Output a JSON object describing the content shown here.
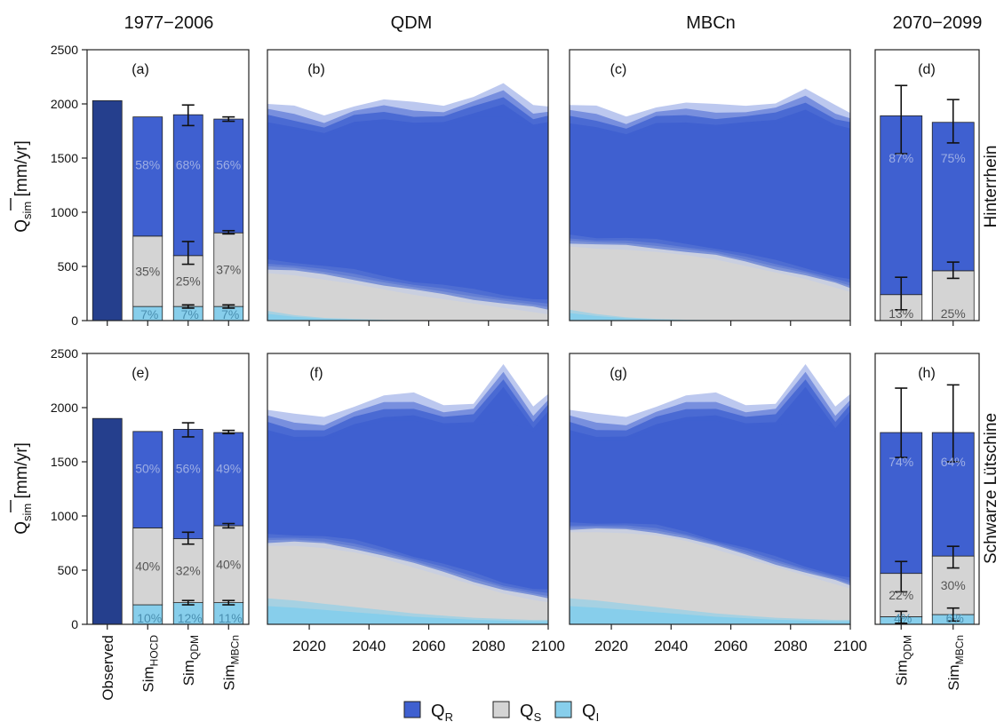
{
  "col_titles": {
    "historical": "1977−2006",
    "qdm": "QDM",
    "mbcn": "MBCn",
    "future": "2070−2099"
  },
  "row_labels": [
    "Hinterrhein",
    "Schwarze Lütschine"
  ],
  "ylabel": {
    "main": "Q",
    "sub": "sim",
    "unit": " [mm/yr]"
  },
  "x_ticks_bars_hist": [
    {
      "main": "Observed",
      "sub": ""
    },
    {
      "main": "Sim",
      "sub": "HOCD"
    },
    {
      "main": "Sim",
      "sub": "QDM"
    },
    {
      "main": "Sim",
      "sub": "MBCn"
    }
  ],
  "x_ticks_bars_future": [
    {
      "main": "Sim",
      "sub": "QDM"
    },
    {
      "main": "Sim",
      "sub": "MBCn"
    }
  ],
  "legend": [
    {
      "main": "Q",
      "sub": "R",
      "color": "#3f60d0"
    },
    {
      "main": "Q",
      "sub": "S",
      "color": "#d4d4d4"
    },
    {
      "main": "Q",
      "sub": "I",
      "color": "#87ceeb"
    }
  ],
  "colors": {
    "observed": "#253f8d",
    "QR": "#3f60d0",
    "QS": "#d4d4d4",
    "QI": "#87ceeb",
    "pct_on_blue": "#9eaee4",
    "pct_on_grey": "#555555",
    "pct_on_ice": "#4a8fb0"
  },
  "chart_data": [
    {
      "panel": "(a)",
      "type": "bar",
      "stacked": true,
      "ylim": [
        0,
        2500
      ],
      "yticks": [
        0,
        500,
        1000,
        1500,
        2000,
        2500
      ],
      "categories": [
        "Observed",
        "SimHOCD",
        "SimQDM",
        "SimMBCn"
      ],
      "bars": [
        {
          "total": 2030,
          "observed": true
        },
        {
          "QI": 130,
          "QS": 650,
          "QR": 1100,
          "pct": [
            "7%",
            "35%",
            "58%"
          ]
        },
        {
          "QI": 130,
          "QS": 470,
          "QR": 1300,
          "err_total": [
            1800,
            1990
          ],
          "err_top_s": [
            520,
            730
          ],
          "err_top_i": [
            115,
            145
          ],
          "pct": [
            "7%",
            "25%",
            "68%"
          ]
        },
        {
          "QI": 130,
          "QS": 680,
          "QR": 1050,
          "err_total": [
            1840,
            1880
          ],
          "err_top_s": [
            800,
            830
          ],
          "err_top_i": [
            115,
            145
          ],
          "pct": [
            "7%",
            "37%",
            "56%"
          ]
        }
      ]
    },
    {
      "panel": "(b)",
      "type": "area",
      "stacked": true,
      "xlim": [
        2006,
        2100
      ],
      "ylim": [
        0,
        2500
      ],
      "xticks": [
        2020,
        2040,
        2060,
        2080,
        2100
      ],
      "x": [
        2006,
        2015,
        2025,
        2035,
        2045,
        2055,
        2065,
        2075,
        2085,
        2095,
        2100
      ],
      "qi_top": [
        90,
        50,
        25,
        15,
        8,
        5,
        3,
        2,
        1,
        1,
        1
      ],
      "qs_top": [
        480,
        460,
        420,
        380,
        330,
        280,
        240,
        200,
        160,
        120,
        100
      ],
      "qr_top": [
        2000,
        1960,
        1900,
        2000,
        2030,
        2000,
        2000,
        2080,
        2170,
        1980,
        2000
      ],
      "qs_spread": 140,
      "qr_spread": 200
    },
    {
      "panel": "(c)",
      "type": "area",
      "stacked": true,
      "xlim": [
        2006,
        2100
      ],
      "ylim": [
        0,
        2500
      ],
      "xticks": [
        2020,
        2040,
        2060,
        2080,
        2100
      ],
      "x": [
        2006,
        2015,
        2025,
        2035,
        2045,
        2055,
        2065,
        2075,
        2085,
        2095,
        2100
      ],
      "qi_top": [
        100,
        60,
        30,
        15,
        8,
        5,
        3,
        2,
        1,
        1,
        1
      ],
      "qs_top": [
        720,
        700,
        690,
        670,
        640,
        600,
        540,
        480,
        420,
        340,
        300
      ],
      "qr_top": [
        1990,
        1960,
        1890,
        1990,
        2000,
        1980,
        2000,
        2020,
        2120,
        1980,
        1940
      ],
      "qs_spread": 120,
      "qr_spread": 200
    },
    {
      "panel": "(d)",
      "type": "bar",
      "stacked": true,
      "ylim": [
        0,
        2500
      ],
      "categories": [
        "SimQDM",
        "SimMBCn"
      ],
      "bars": [
        {
          "QI": 0,
          "QS": 240,
          "QR": 1650,
          "err_total": [
            1540,
            2170
          ],
          "err_top_s": [
            100,
            400
          ],
          "pct": [
            "",
            "13%",
            "87%"
          ]
        },
        {
          "QI": 0,
          "QS": 460,
          "QR": 1370,
          "err_total": [
            1640,
            2040
          ],
          "err_top_s": [
            390,
            540
          ],
          "pct": [
            "",
            "25%",
            "75%"
          ]
        }
      ]
    },
    {
      "panel": "(e)",
      "type": "bar",
      "stacked": true,
      "ylim": [
        0,
        2500
      ],
      "yticks": [
        0,
        500,
        1000,
        1500,
        2000,
        2500
      ],
      "categories": [
        "Observed",
        "SimHOCD",
        "SimQDM",
        "SimMBCn"
      ],
      "bars": [
        {
          "total": 1900,
          "observed": true
        },
        {
          "QI": 180,
          "QS": 710,
          "QR": 890,
          "pct": [
            "10%",
            "40%",
            "50%"
          ]
        },
        {
          "QI": 200,
          "QS": 590,
          "QR": 1010,
          "err_total": [
            1730,
            1860
          ],
          "err_top_s": [
            740,
            850
          ],
          "err_top_i": [
            180,
            220
          ],
          "pct": [
            "12%",
            "32%",
            "56%"
          ]
        },
        {
          "QI": 200,
          "QS": 710,
          "QR": 860,
          "err_total": [
            1760,
            1790
          ],
          "err_top_s": [
            890,
            930
          ],
          "err_top_i": [
            180,
            220
          ],
          "pct": [
            "11%",
            "40%",
            "49%"
          ]
        }
      ]
    },
    {
      "panel": "(f)",
      "type": "area",
      "stacked": true,
      "xlim": [
        2006,
        2100
      ],
      "ylim": [
        0,
        2500
      ],
      "xticks": [
        2020,
        2040,
        2060,
        2080,
        2100
      ],
      "x": [
        2006,
        2015,
        2025,
        2035,
        2045,
        2055,
        2065,
        2075,
        2085,
        2095,
        2100
      ],
      "qi_top": [
        240,
        220,
        190,
        160,
        130,
        100,
        80,
        60,
        50,
        40,
        40
      ],
      "qs_top": [
        760,
        760,
        740,
        700,
        640,
        560,
        480,
        400,
        320,
        260,
        240
      ],
      "qr_top": [
        1980,
        1920,
        1920,
        2030,
        2100,
        2120,
        2040,
        2050,
        2380,
        2000,
        2150
      ],
      "qs_spread": 120,
      "qr_spread": 220
    },
    {
      "panel": "(g)",
      "type": "area",
      "stacked": true,
      "xlim": [
        2006,
        2100
      ],
      "ylim": [
        0,
        2500
      ],
      "xticks": [
        2020,
        2040,
        2060,
        2080,
        2100
      ],
      "x": [
        2006,
        2015,
        2025,
        2035,
        2045,
        2055,
        2065,
        2075,
        2085,
        2095,
        2100
      ],
      "qi_top": [
        240,
        220,
        190,
        160,
        130,
        100,
        80,
        60,
        50,
        40,
        40
      ],
      "qs_top": [
        880,
        880,
        870,
        850,
        800,
        720,
        640,
        560,
        480,
        400,
        360
      ],
      "qr_top": [
        1980,
        1920,
        1920,
        2030,
        2100,
        2120,
        2040,
        2050,
        2380,
        2000,
        2150
      ],
      "qs_spread": 100,
      "qr_spread": 220
    },
    {
      "panel": "(h)",
      "type": "bar",
      "stacked": true,
      "ylim": [
        0,
        2500
      ],
      "categories": [
        "SimQDM",
        "SimMBCn"
      ],
      "bars": [
        {
          "QI": 70,
          "QS": 400,
          "QR": 1300,
          "err_total": [
            1540,
            2180
          ],
          "err_top_s": [
            300,
            580
          ],
          "err_top_i": [
            10,
            120
          ],
          "pct": [
            "4%",
            "22%",
            "74%"
          ]
        },
        {
          "QI": 90,
          "QS": 540,
          "QR": 1140,
          "err_total": [
            1500,
            2210
          ],
          "err_top_s": [
            520,
            720
          ],
          "err_top_i": [
            30,
            150
          ],
          "pct": [
            "6%",
            "30%",
            "64%"
          ]
        }
      ]
    }
  ]
}
